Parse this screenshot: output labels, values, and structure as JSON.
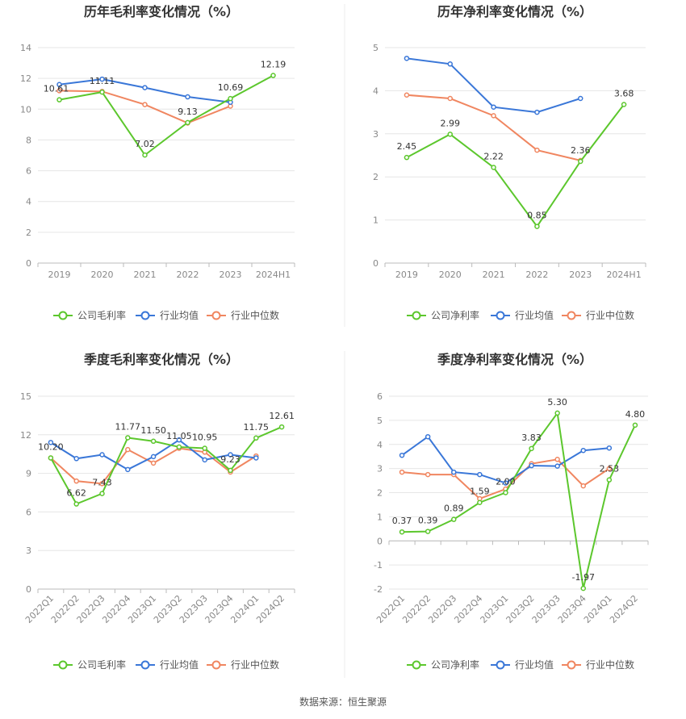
{
  "colors": {
    "company": "#5cc72d",
    "industry_avg": "#3a77d8",
    "industry_median": "#f08660",
    "grid": "#e6e6e6",
    "axis": "#bbbbbb",
    "divider": "#eeeeee"
  },
  "legend": {
    "gross": [
      "公司毛利率",
      "行业均值",
      "行业中位数"
    ],
    "net": [
      "公司净利率",
      "行业均值",
      "行业中位数"
    ]
  },
  "footer": {
    "source": "数据来源：恒生聚源"
  },
  "chart_data": [
    {
      "type": "line",
      "title": "历年毛利率变化情况（%）",
      "categories": [
        "2019",
        "2020",
        "2021",
        "2022",
        "2023",
        "2024H1"
      ],
      "ylim": [
        0,
        14
      ],
      "yticks": [
        0,
        2,
        4,
        6,
        8,
        10,
        12,
        14
      ],
      "series": [
        {
          "name": "公司毛利率",
          "values": [
            10.61,
            11.11,
            7.02,
            9.13,
            10.69,
            12.19
          ],
          "labels": [
            "10.61",
            "11.11",
            "7.02",
            "9.13",
            "10.69",
            "12.19"
          ]
        },
        {
          "name": "行业均值",
          "values": [
            11.6,
            11.95,
            11.4,
            10.8,
            10.45,
            null
          ]
        },
        {
          "name": "行业中位数",
          "values": [
            11.2,
            11.15,
            10.3,
            9.1,
            10.2,
            null
          ]
        }
      ]
    },
    {
      "type": "line",
      "title": "历年净利率变化情况（%）",
      "categories": [
        "2019",
        "2020",
        "2021",
        "2022",
        "2023",
        "2024H1"
      ],
      "ylim": [
        0,
        5
      ],
      "yticks": [
        0,
        1,
        2,
        3,
        4,
        5
      ],
      "series": [
        {
          "name": "公司净利率",
          "values": [
            2.45,
            2.99,
            2.22,
            0.85,
            2.36,
            3.68
          ],
          "labels": [
            "2.45",
            "2.99",
            "2.22",
            "0.85",
            "2.36",
            "3.68"
          ]
        },
        {
          "name": "行业均值",
          "values": [
            4.75,
            4.62,
            3.62,
            3.5,
            3.82,
            null
          ]
        },
        {
          "name": "行业中位数",
          "values": [
            3.9,
            3.82,
            3.42,
            2.62,
            2.38,
            null
          ]
        }
      ]
    },
    {
      "type": "line",
      "title": "季度毛利率变化情况（%）",
      "categories": [
        "2022Q1",
        "2022Q2",
        "2022Q3",
        "2022Q4",
        "2023Q1",
        "2023Q2",
        "2023Q3",
        "2023Q4",
        "2024Q1",
        "2024Q2"
      ],
      "ylim": [
        0,
        15
      ],
      "yticks": [
        0,
        3,
        6,
        9,
        12,
        15
      ],
      "series": [
        {
          "name": "公司毛利率",
          "values": [
            10.2,
            6.62,
            7.43,
            11.77,
            11.5,
            11.05,
            10.95,
            9.23,
            11.75,
            12.61
          ],
          "labels": [
            "10.20",
            "6.62",
            "7.43",
            "11.77",
            "11.50",
            "11.05",
            "10.95",
            "9.23",
            "11.75",
            "12.61"
          ]
        },
        {
          "name": "行业均值",
          "values": [
            11.4,
            10.15,
            10.45,
            9.3,
            10.3,
            11.6,
            10.05,
            10.45,
            10.2,
            null
          ]
        },
        {
          "name": "行业中位数",
          "values": [
            10.2,
            8.4,
            8.2,
            10.85,
            9.8,
            10.95,
            10.65,
            9.1,
            10.35,
            null
          ]
        }
      ]
    },
    {
      "type": "line",
      "title": "季度净利率变化情况（%）",
      "categories": [
        "2022Q1",
        "2022Q2",
        "2022Q3",
        "2022Q4",
        "2023Q1",
        "2023Q2",
        "2023Q3",
        "2023Q4",
        "2024Q1",
        "2024Q2"
      ],
      "ylim": [
        -2,
        6
      ],
      "yticks": [
        -2,
        -1,
        0,
        1,
        2,
        3,
        4,
        5,
        6
      ],
      "series": [
        {
          "name": "公司净利率",
          "values": [
            0.37,
            0.39,
            0.89,
            1.59,
            2.0,
            3.83,
            5.3,
            -1.97,
            2.53,
            4.8
          ],
          "labels": [
            "0.37",
            "0.39",
            "0.89",
            "1.59",
            "2.00",
            "3.83",
            "5.30",
            "-1.97",
            "2.53",
            "4.80"
          ]
        },
        {
          "name": "行业均值",
          "values": [
            3.55,
            4.32,
            2.85,
            2.75,
            2.4,
            3.12,
            3.1,
            3.75,
            3.85,
            null
          ]
        },
        {
          "name": "行业中位数",
          "values": [
            2.85,
            2.75,
            2.75,
            1.75,
            2.15,
            3.2,
            3.38,
            2.28,
            3.0,
            null
          ]
        }
      ]
    }
  ]
}
